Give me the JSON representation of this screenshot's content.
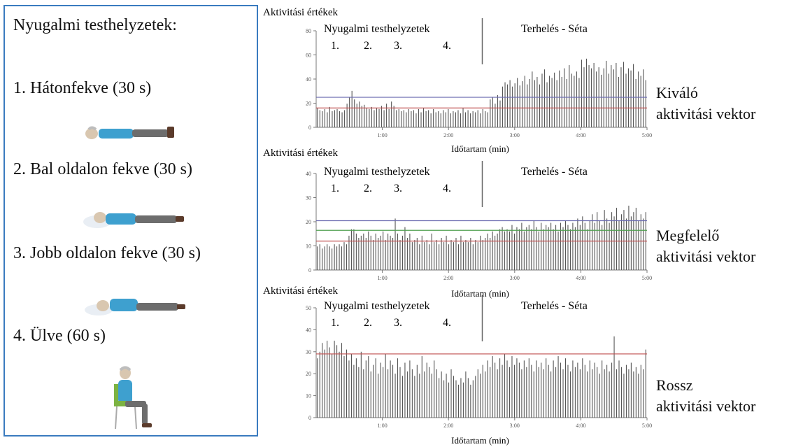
{
  "left_panel": {
    "title": "Nyugalmi testhelyzetek:",
    "positions": [
      {
        "label": "1. Hátonfekve (30 s)",
        "icon": "lying-supine-icon"
      },
      {
        "label": "2. Bal oldalon fekve (30 s)",
        "icon": "lying-left-side-icon"
      },
      {
        "label": "3. Jobb oldalon fekve (30 s)",
        "icon": "lying-right-side-icon"
      },
      {
        "label": "4. Ülve (60 s)",
        "icon": "sitting-icon"
      }
    ]
  },
  "colors": {
    "panel_border": "#3a7bbf",
    "bar": "#555555",
    "line_blue": "#6b6bb0",
    "line_red": "#c05050",
    "line_green": "#50a050"
  },
  "chart_data": [
    {
      "type": "bar",
      "ylabel": "Aktivitási értékek",
      "xlabel": "Időtartam (min)",
      "region_rest": "Nyugalmi testhelyzetek",
      "region_rest_numbers": [
        "1.",
        "2.",
        "3.",
        "4."
      ],
      "region_load": "Terhelés - Séta",
      "vector_line1": "Kiváló",
      "vector_line2": "aktivitási vektor",
      "yticks": [
        "0",
        "20",
        "40",
        "60",
        "80"
      ],
      "xticks": [
        "1:00",
        "2:00",
        "3:00",
        "4:00",
        "5:00"
      ],
      "ylim": [
        0,
        90
      ],
      "xlim": [
        0,
        5
      ],
      "hlines": [
        {
          "value": 28,
          "color": "#6b6bb0"
        },
        {
          "value": 18,
          "color": "#c05050"
        }
      ],
      "values": [
        18,
        16,
        15,
        17,
        14,
        19,
        15,
        16,
        17,
        15,
        14,
        16,
        22,
        28,
        34,
        26,
        22,
        24,
        20,
        21,
        18,
        17,
        19,
        16,
        18,
        17,
        20,
        16,
        22,
        17,
        24,
        20,
        16,
        17,
        15,
        16,
        14,
        17,
        15,
        16,
        13,
        17,
        14,
        18,
        15,
        16,
        13,
        17,
        14,
        15,
        13,
        16,
        14,
        17,
        13,
        15,
        14,
        16,
        13,
        18,
        14,
        16,
        13,
        15,
        14,
        16,
        13,
        17,
        15,
        14,
        26,
        28,
        22,
        30,
        25,
        38,
        42,
        40,
        44,
        38,
        41,
        46,
        39,
        43,
        48,
        40,
        45,
        52,
        44,
        47,
        40,
        50,
        54,
        42,
        48,
        46,
        51,
        44,
        53,
        47,
        55,
        45,
        58,
        50,
        48,
        52,
        46,
        63,
        56,
        64,
        58,
        55,
        60,
        52,
        56,
        49,
        55,
        62,
        50,
        58,
        54,
        60,
        47,
        56,
        61,
        50,
        55,
        53,
        59,
        45,
        52,
        48,
        54,
        44
      ],
      "rest_end": 2.5
    },
    {
      "type": "bar",
      "ylabel": "Aktivitási értékek",
      "xlabel": "Időtartam (min)",
      "region_rest": "Nyugalmi testhelyzetek",
      "region_rest_numbers": [
        "1.",
        "2.",
        "3.",
        "4."
      ],
      "region_load": "Terhelés - Séta",
      "vector_line1": "Megfelelő",
      "vector_line2": "aktivitási vektor",
      "yticks": [
        "0",
        "10",
        "20",
        "30",
        "40"
      ],
      "xticks": [
        "1:00",
        "2:00",
        "3:00",
        "4:00",
        "5:00"
      ],
      "ylim": [
        0,
        45
      ],
      "xlim": [
        0,
        5
      ],
      "hlines": [
        {
          "value": 23,
          "color": "#6b6bb0"
        },
        {
          "value": 18.5,
          "color": "#50a050"
        },
        {
          "value": 13.5,
          "color": "#c05050"
        }
      ],
      "values": [
        11,
        12,
        10,
        11,
        12,
        11,
        10,
        12,
        11,
        12,
        11,
        13,
        12,
        16,
        19,
        19,
        17,
        15,
        16,
        17,
        15,
        18,
        16,
        14,
        17,
        15,
        16,
        18,
        14,
        17,
        16,
        15,
        24,
        17,
        14,
        16,
        20,
        15,
        17,
        13,
        14,
        15,
        12,
        16,
        13,
        14,
        12,
        17,
        13,
        14,
        12,
        15,
        13,
        16,
        12,
        14,
        13,
        15,
        12,
        16,
        13,
        14,
        13,
        15,
        12,
        14,
        13,
        16,
        14,
        15,
        17,
        15,
        18,
        16,
        17,
        19,
        20,
        18,
        19,
        18,
        21,
        17,
        20,
        19,
        22,
        18,
        20,
        21,
        19,
        23,
        20,
        18,
        22,
        19,
        21,
        20,
        22,
        19,
        21,
        18,
        22,
        20,
        23,
        21,
        19,
        22,
        20,
        24,
        21,
        25,
        22,
        19,
        23,
        26,
        22,
        27,
        23,
        21,
        28,
        24,
        22,
        27,
        25,
        29,
        23,
        26,
        28,
        24,
        30,
        25,
        27,
        29,
        23,
        26,
        24,
        27
      ],
      "rest_end": 2.5
    },
    {
      "type": "bar",
      "ylabel": "Aktivitási értékek",
      "xlabel": "Időtartam (min)",
      "region_rest": "Nyugalmi testhelyzetek",
      "region_rest_numbers": [
        "1.",
        "2.",
        "3.",
        "4."
      ],
      "region_load": "Terhelés - Séta",
      "vector_line1": "Rossz",
      "vector_line2": "aktivitási vektor",
      "yticks": [
        "0",
        "10",
        "20",
        "30",
        "40",
        "50"
      ],
      "xticks": [
        "1:00",
        "2:00",
        "3:00",
        "4:00",
        "5:00"
      ],
      "ylim": [
        0,
        50
      ],
      "xlim": [
        0,
        5
      ],
      "hlines": [
        {
          "value": 29,
          "color": "#c05050"
        }
      ],
      "values": [
        27,
        30,
        34,
        31,
        35,
        32,
        29,
        35,
        33,
        30,
        34,
        28,
        31,
        26,
        29,
        24,
        27,
        23,
        30,
        22,
        26,
        28,
        21,
        24,
        27,
        20,
        25,
        23,
        29,
        22,
        26,
        24,
        20,
        27,
        23,
        19,
        25,
        21,
        26,
        22,
        19,
        24,
        20,
        28,
        21,
        25,
        23,
        20,
        26,
        22,
        18,
        21,
        17,
        20,
        16,
        22,
        19,
        17,
        15,
        18,
        16,
        21,
        18,
        15,
        17,
        19,
        22,
        20,
        24,
        21,
        26,
        23,
        28,
        25,
        22,
        27,
        24,
        29,
        26,
        23,
        28,
        24,
        27,
        25,
        22,
        26,
        23,
        27,
        24,
        21,
        26,
        23,
        25,
        22,
        27,
        24,
        21,
        26,
        23,
        28,
        25,
        22,
        27,
        24,
        21,
        26,
        23,
        25,
        22,
        27,
        24,
        21,
        26,
        22,
        25,
        23,
        20,
        26,
        22,
        24,
        21,
        25,
        37,
        22,
        26,
        23,
        20,
        24,
        22,
        25,
        21,
        23,
        20,
        24,
        22,
        31
      ],
      "rest_end": 2.5
    }
  ]
}
